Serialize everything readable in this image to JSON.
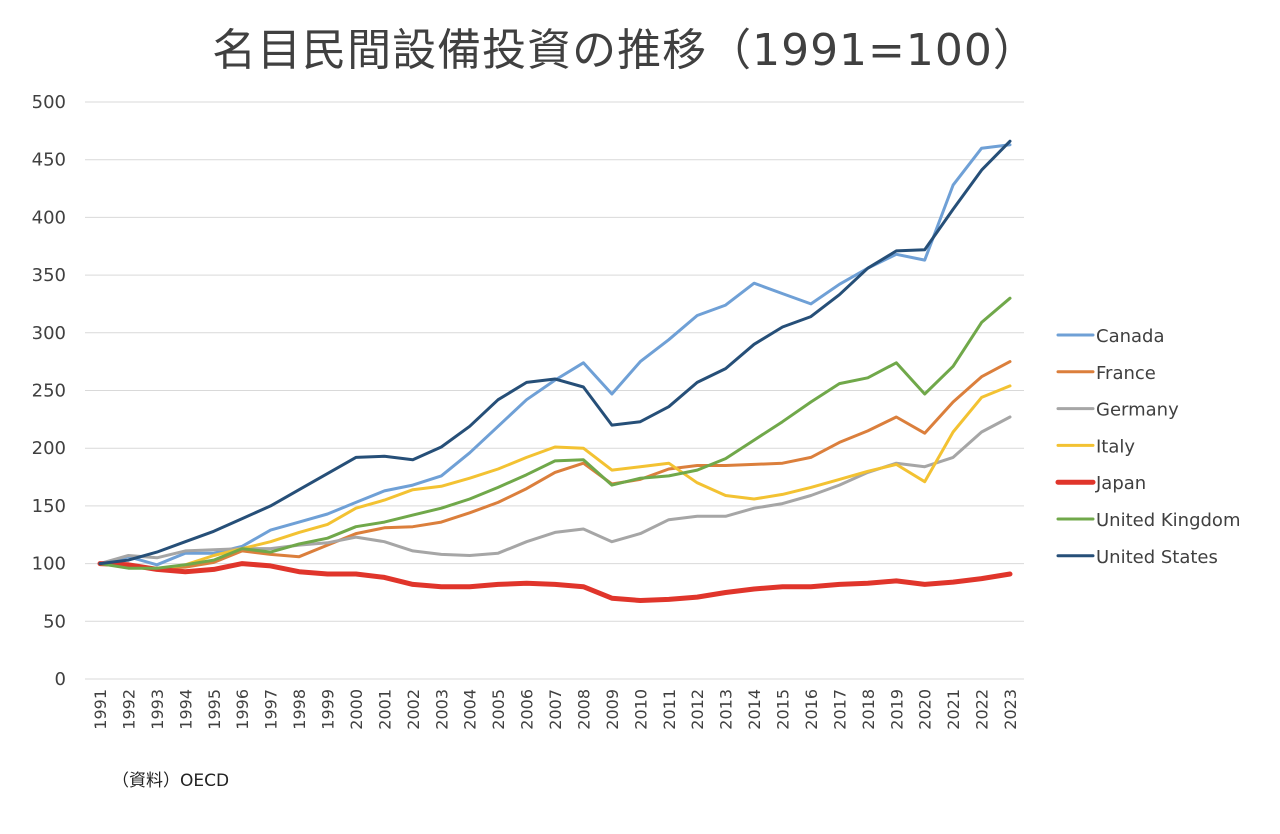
{
  "chart_data": {
    "type": "line",
    "title": "名目民間設備投資の推移（1991=100）",
    "xlabel": "",
    "ylabel": "",
    "ylim": [
      0,
      500
    ],
    "yticks": [
      0,
      50,
      100,
      150,
      200,
      250,
      300,
      350,
      400,
      450,
      500
    ],
    "grid": true,
    "legend_position": "right",
    "x": [
      "1991",
      "1992",
      "1993",
      "1994",
      "1995",
      "1996",
      "1997",
      "1998",
      "1999",
      "2000",
      "2001",
      "2002",
      "2003",
      "2004",
      "2005",
      "2006",
      "2007",
      "2008",
      "2009",
      "2010",
      "2011",
      "2012",
      "2013",
      "2014",
      "2015",
      "2016",
      "2017",
      "2018",
      "2019",
      "2020",
      "2021",
      "2022",
      "2023"
    ],
    "series": [
      {
        "name": "Canada",
        "color": "#6fa0d6",
        "values": [
          100,
          106,
          99,
          109,
          109,
          115,
          129,
          136,
          143,
          153,
          163,
          168,
          176,
          196,
          219,
          242,
          259,
          274,
          247,
          275,
          294,
          315,
          324,
          343,
          334,
          325,
          342,
          356,
          368,
          363,
          428,
          460,
          463
        ]
      },
      {
        "name": "France",
        "color": "#db7f3c",
        "values": [
          100,
          97,
          96,
          97,
          101,
          111,
          108,
          106,
          116,
          126,
          131,
          132,
          136,
          144,
          153,
          165,
          179,
          187,
          169,
          173,
          182,
          185,
          185,
          186,
          187,
          192,
          205,
          215,
          227,
          213,
          240,
          262,
          275
        ]
      },
      {
        "name": "Germany",
        "color": "#a6a6a6",
        "values": [
          100,
          107,
          105,
          111,
          112,
          113,
          113,
          116,
          118,
          123,
          119,
          111,
          108,
          107,
          109,
          119,
          127,
          130,
          119,
          126,
          138,
          141,
          141,
          148,
          152,
          159,
          168,
          179,
          187,
          184,
          192,
          214,
          227
        ]
      },
      {
        "name": "Italy",
        "color": "#f3c232",
        "values": [
          100,
          98,
          95,
          99,
          107,
          113,
          119,
          127,
          134,
          148,
          155,
          164,
          167,
          174,
          182,
          192,
          201,
          200,
          181,
          184,
          187,
          170,
          159,
          156,
          160,
          166,
          173,
          180,
          186,
          171,
          214,
          244,
          254
        ]
      },
      {
        "name": "Japan",
        "color": "#e0352b",
        "values": [
          100,
          99,
          95,
          93,
          95,
          100,
          98,
          93,
          91,
          91,
          88,
          82,
          80,
          80,
          82,
          83,
          82,
          80,
          70,
          68,
          69,
          71,
          75,
          78,
          80,
          80,
          82,
          83,
          85,
          82,
          84,
          87,
          91
        ]
      },
      {
        "name": "United Kingdom",
        "color": "#70a84a",
        "values": [
          100,
          96,
          96,
          99,
          103,
          113,
          110,
          117,
          122,
          132,
          136,
          142,
          148,
          156,
          166,
          177,
          189,
          190,
          168,
          174,
          176,
          181,
          191,
          207,
          223,
          240,
          256,
          261,
          274,
          247,
          271,
          309,
          330
        ]
      },
      {
        "name": "United States",
        "color": "#264f78",
        "values": [
          100,
          103,
          110,
          119,
          128,
          139,
          150,
          164,
          178,
          192,
          193,
          190,
          201,
          219,
          242,
          257,
          260,
          253,
          220,
          223,
          236,
          257,
          269,
          290,
          305,
          314,
          333,
          356,
          371,
          372,
          407,
          441,
          466
        ]
      }
    ]
  },
  "source_note": "（資料）OECD"
}
